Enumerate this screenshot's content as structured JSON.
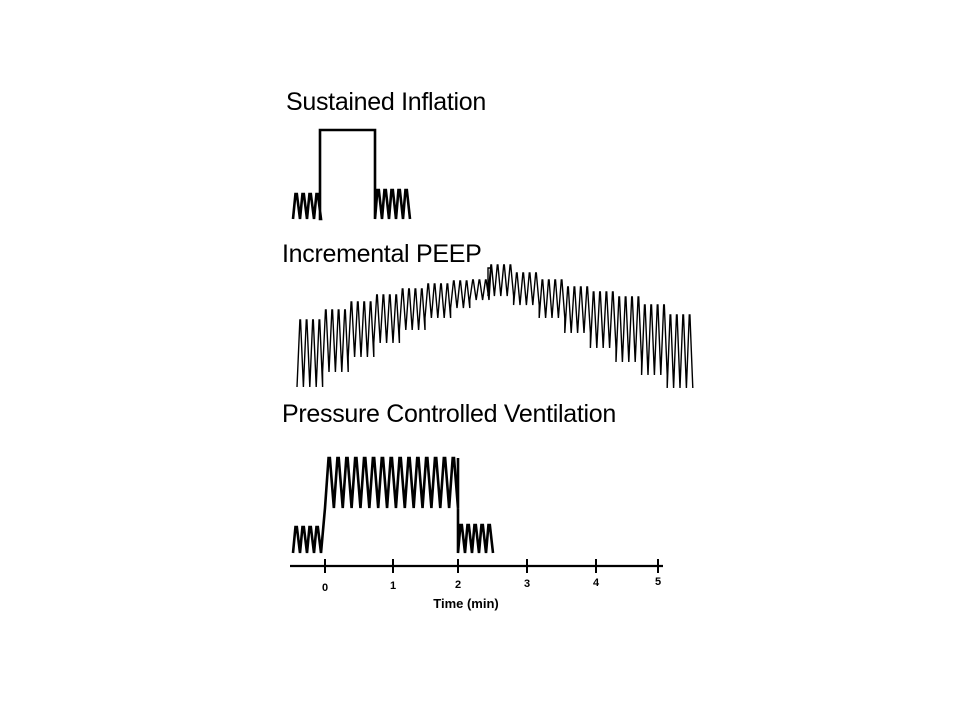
{
  "panels": {
    "sustained_inflation": {
      "title": "Sustained Inflation"
    },
    "incremental_peep": {
      "title": "Incremental PEEP"
    },
    "pressure_controlled_ventilation": {
      "title": "Pressure Controlled Ventilation"
    }
  },
  "time_axis": {
    "label": "Time (min)",
    "ticks": [
      "0",
      "1",
      "2",
      "3",
      "4",
      "5"
    ]
  },
  "colors": {
    "trace": "#000000",
    "background": "#ffffff"
  }
}
